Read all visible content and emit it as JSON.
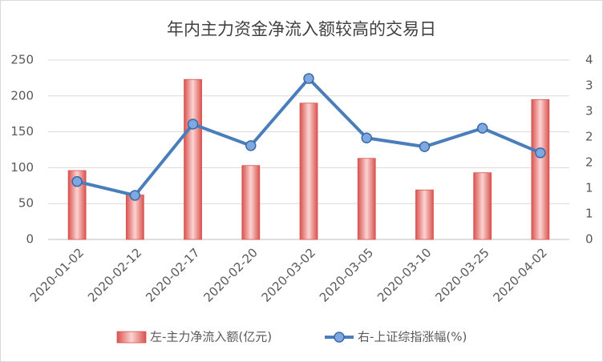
{
  "chart_data": {
    "type": "bar",
    "title": "年内主力资金净流入额较高的交易日",
    "categories": [
      "2020-01-02",
      "2020-02-12",
      "2020-02-17",
      "2020-02-20",
      "2020-03-02",
      "2020-03-05",
      "2020-03-10",
      "2020-03-25",
      "2020-04-02"
    ],
    "series": [
      {
        "name": "左-主力净流入额(亿元)",
        "type": "bar",
        "color": "#d9534f",
        "values": [
          96,
          62,
          223,
          103,
          190,
          113,
          69,
          93,
          195
        ]
      },
      {
        "name": "右-上证综指涨幅(%)",
        "type": "line",
        "axis": "y2",
        "color": "#4a7ebb",
        "values": [
          1.13,
          0.86,
          2.25,
          1.83,
          3.14,
          1.98,
          1.81,
          2.17,
          1.69
        ]
      }
    ],
    "ylim": [
      0,
      250
    ],
    "yticks": [
      0,
      50,
      100,
      150,
      200,
      250
    ],
    "y2lim": [
      0,
      3.5
    ],
    "y2ticks": [
      0,
      {
        "value": 0.5,
        "label": "1"
      },
      1,
      {
        "value": 1.5,
        "label": "2"
      },
      2,
      {
        "value": 2.5,
        "label": "3"
      },
      3,
      {
        "value": 3.5,
        "label": "4"
      }
    ],
    "grid": true,
    "legend": "bottom"
  }
}
